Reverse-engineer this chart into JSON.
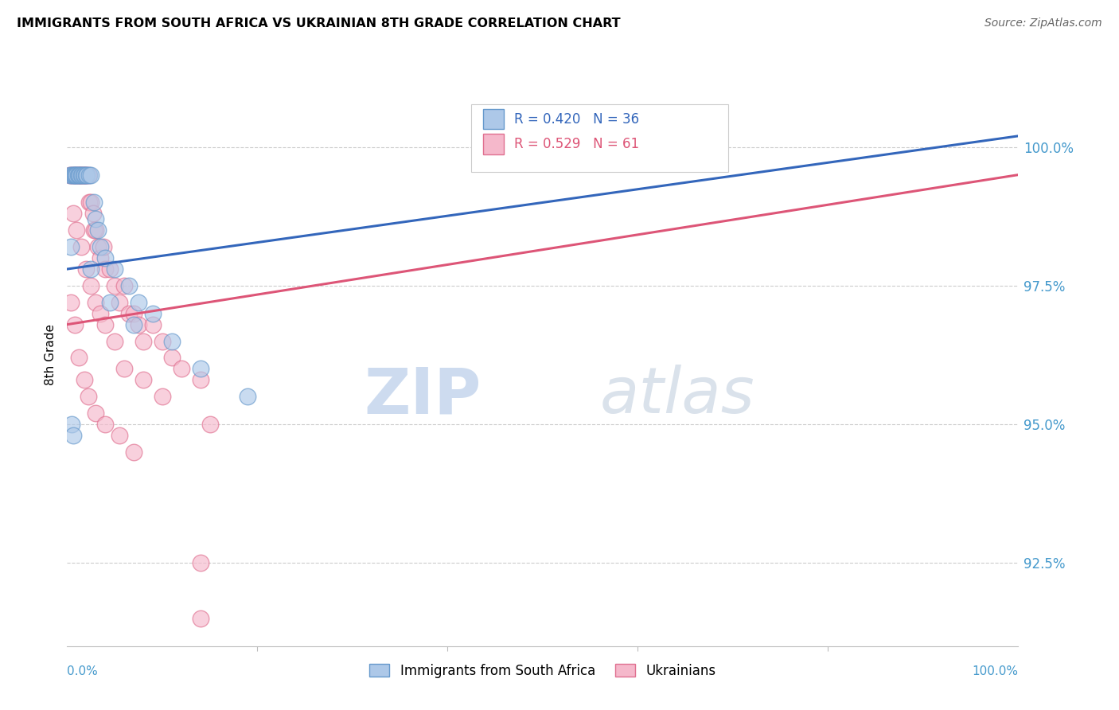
{
  "title": "IMMIGRANTS FROM SOUTH AFRICA VS UKRAINIAN 8TH GRADE CORRELATION CHART",
  "source": "Source: ZipAtlas.com",
  "ylabel": "8th Grade",
  "ylabel_ticks": [
    92.5,
    95.0,
    97.5,
    100.0
  ],
  "ylabel_tick_labels": [
    "92.5%",
    "95.0%",
    "97.5%",
    "100.0%"
  ],
  "xlim": [
    0.0,
    100.0
  ],
  "ylim": [
    91.0,
    101.5
  ],
  "legend_blue_R": "R = 0.420",
  "legend_blue_N": "N = 36",
  "legend_pink_R": "R = 0.529",
  "legend_pink_N": "N = 61",
  "legend_label_blue": "Immigrants from South Africa",
  "legend_label_pink": "Ukrainians",
  "blue_fill": "#adc8e8",
  "pink_fill": "#f5b8cb",
  "blue_edge": "#6699cc",
  "pink_edge": "#e07090",
  "blue_line_color": "#3366bb",
  "pink_line_color": "#dd5577",
  "blue_legend_color": "#3366bb",
  "pink_legend_color": "#dd5577",
  "watermark_zip": "ZIP",
  "watermark_atlas": "atlas",
  "blue_x": [
    0.3,
    0.5,
    0.6,
    0.7,
    0.8,
    0.9,
    1.0,
    1.1,
    1.2,
    1.3,
    1.5,
    1.6,
    1.7,
    1.8,
    2.0,
    2.1,
    2.3,
    2.5,
    2.8,
    3.0,
    3.2,
    3.5,
    4.0,
    5.0,
    6.5,
    7.5,
    9.0,
    11.0,
    14.0,
    19.0,
    0.4,
    2.5,
    4.5,
    7.0,
    0.5,
    0.6
  ],
  "blue_y": [
    99.5,
    99.5,
    99.5,
    99.5,
    99.5,
    99.5,
    99.5,
    99.5,
    99.5,
    99.5,
    99.5,
    99.5,
    99.5,
    99.5,
    99.5,
    99.5,
    99.5,
    99.5,
    99.0,
    98.7,
    98.5,
    98.2,
    98.0,
    97.8,
    97.5,
    97.2,
    97.0,
    96.5,
    96.0,
    95.5,
    98.2,
    97.8,
    97.2,
    96.8,
    95.0,
    94.8
  ],
  "pink_x": [
    0.3,
    0.5,
    0.7,
    0.8,
    1.0,
    1.1,
    1.2,
    1.3,
    1.4,
    1.5,
    1.6,
    1.7,
    1.8,
    1.9,
    2.0,
    2.2,
    2.3,
    2.5,
    2.7,
    2.8,
    3.0,
    3.2,
    3.5,
    3.8,
    4.0,
    4.5,
    5.0,
    5.5,
    6.0,
    6.5,
    7.0,
    7.5,
    8.0,
    9.0,
    10.0,
    11.0,
    12.0,
    14.0,
    0.6,
    1.0,
    1.5,
    2.0,
    2.5,
    3.0,
    3.5,
    4.0,
    5.0,
    6.0,
    8.0,
    10.0,
    15.0,
    0.4,
    0.8,
    1.2,
    1.8,
    2.2,
    3.0,
    4.0,
    5.5,
    7.0,
    14.0
  ],
  "pink_y": [
    99.5,
    99.5,
    99.5,
    99.5,
    99.5,
    99.5,
    99.5,
    99.5,
    99.5,
    99.5,
    99.5,
    99.5,
    99.5,
    99.5,
    99.5,
    99.5,
    99.0,
    99.0,
    98.8,
    98.5,
    98.5,
    98.2,
    98.0,
    98.2,
    97.8,
    97.8,
    97.5,
    97.2,
    97.5,
    97.0,
    97.0,
    96.8,
    96.5,
    96.8,
    96.5,
    96.2,
    96.0,
    95.8,
    98.8,
    98.5,
    98.2,
    97.8,
    97.5,
    97.2,
    97.0,
    96.8,
    96.5,
    96.0,
    95.8,
    95.5,
    95.0,
    97.2,
    96.8,
    96.2,
    95.8,
    95.5,
    95.2,
    95.0,
    94.8,
    94.5,
    91.5
  ],
  "pink_outlier_x": [
    14.0
  ],
  "pink_outlier_y": [
    92.5
  ],
  "blue_trendline_start_x": 0.0,
  "blue_trendline_start_y": 97.8,
  "blue_trendline_end_x": 100.0,
  "blue_trendline_end_y": 100.2,
  "pink_trendline_start_x": 0.0,
  "pink_trendline_start_y": 96.8,
  "pink_trendline_end_x": 100.0,
  "pink_trendline_end_y": 99.5
}
